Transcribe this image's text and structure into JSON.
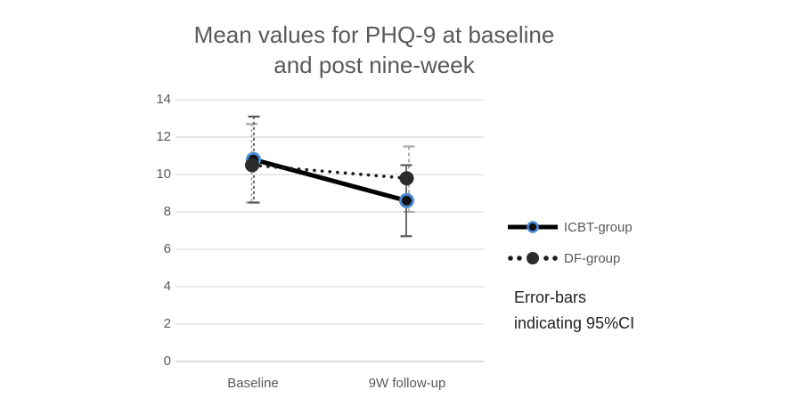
{
  "style": {
    "background": "#ffffff",
    "grid_color": "#d9d9d9",
    "baseline_axis_color": "#c8c8c8",
    "axis_text_color": "#595959",
    "title_color": "#595959",
    "note_color": "#1f1f1f",
    "icbt_line_color": "#000000",
    "icbt_marker_fill": "#111111",
    "icbt_marker_ring": "#4a8bd4",
    "df_line_color": "#1a1a1a",
    "df_marker_fill": "#2b2b2b",
    "error_bar_dark": "#595959",
    "error_bar_light": "#a8a8a8"
  },
  "chart_data": {
    "type": "line",
    "title": "Mean values for PHQ-9 at baseline and post nine-week",
    "title_lines": [
      "Mean values for PHQ-9 at baseline",
      "and post nine-week"
    ],
    "categories": [
      "Baseline",
      "9W follow-up"
    ],
    "xlabel": "",
    "ylabel": "",
    "ylim": [
      0,
      14
    ],
    "y_ticks": [
      0,
      2,
      4,
      6,
      8,
      10,
      12,
      14
    ],
    "grid": "horizontal",
    "legend_position": "right",
    "series": [
      {
        "name": "ICBT-group",
        "line_style": "solid",
        "values": [
          10.8,
          8.6
        ],
        "ci_low": [
          8.5,
          6.7
        ],
        "ci_high": [
          13.1,
          10.5
        ]
      },
      {
        "name": "DF-group",
        "line_style": "dotted",
        "values": [
          10.5,
          9.8
        ],
        "ci_low": [
          8.5,
          8.0
        ],
        "ci_high": [
          12.7,
          11.5
        ]
      }
    ],
    "note_lines": [
      "Error-bars",
      "indicating 95%CI"
    ]
  }
}
